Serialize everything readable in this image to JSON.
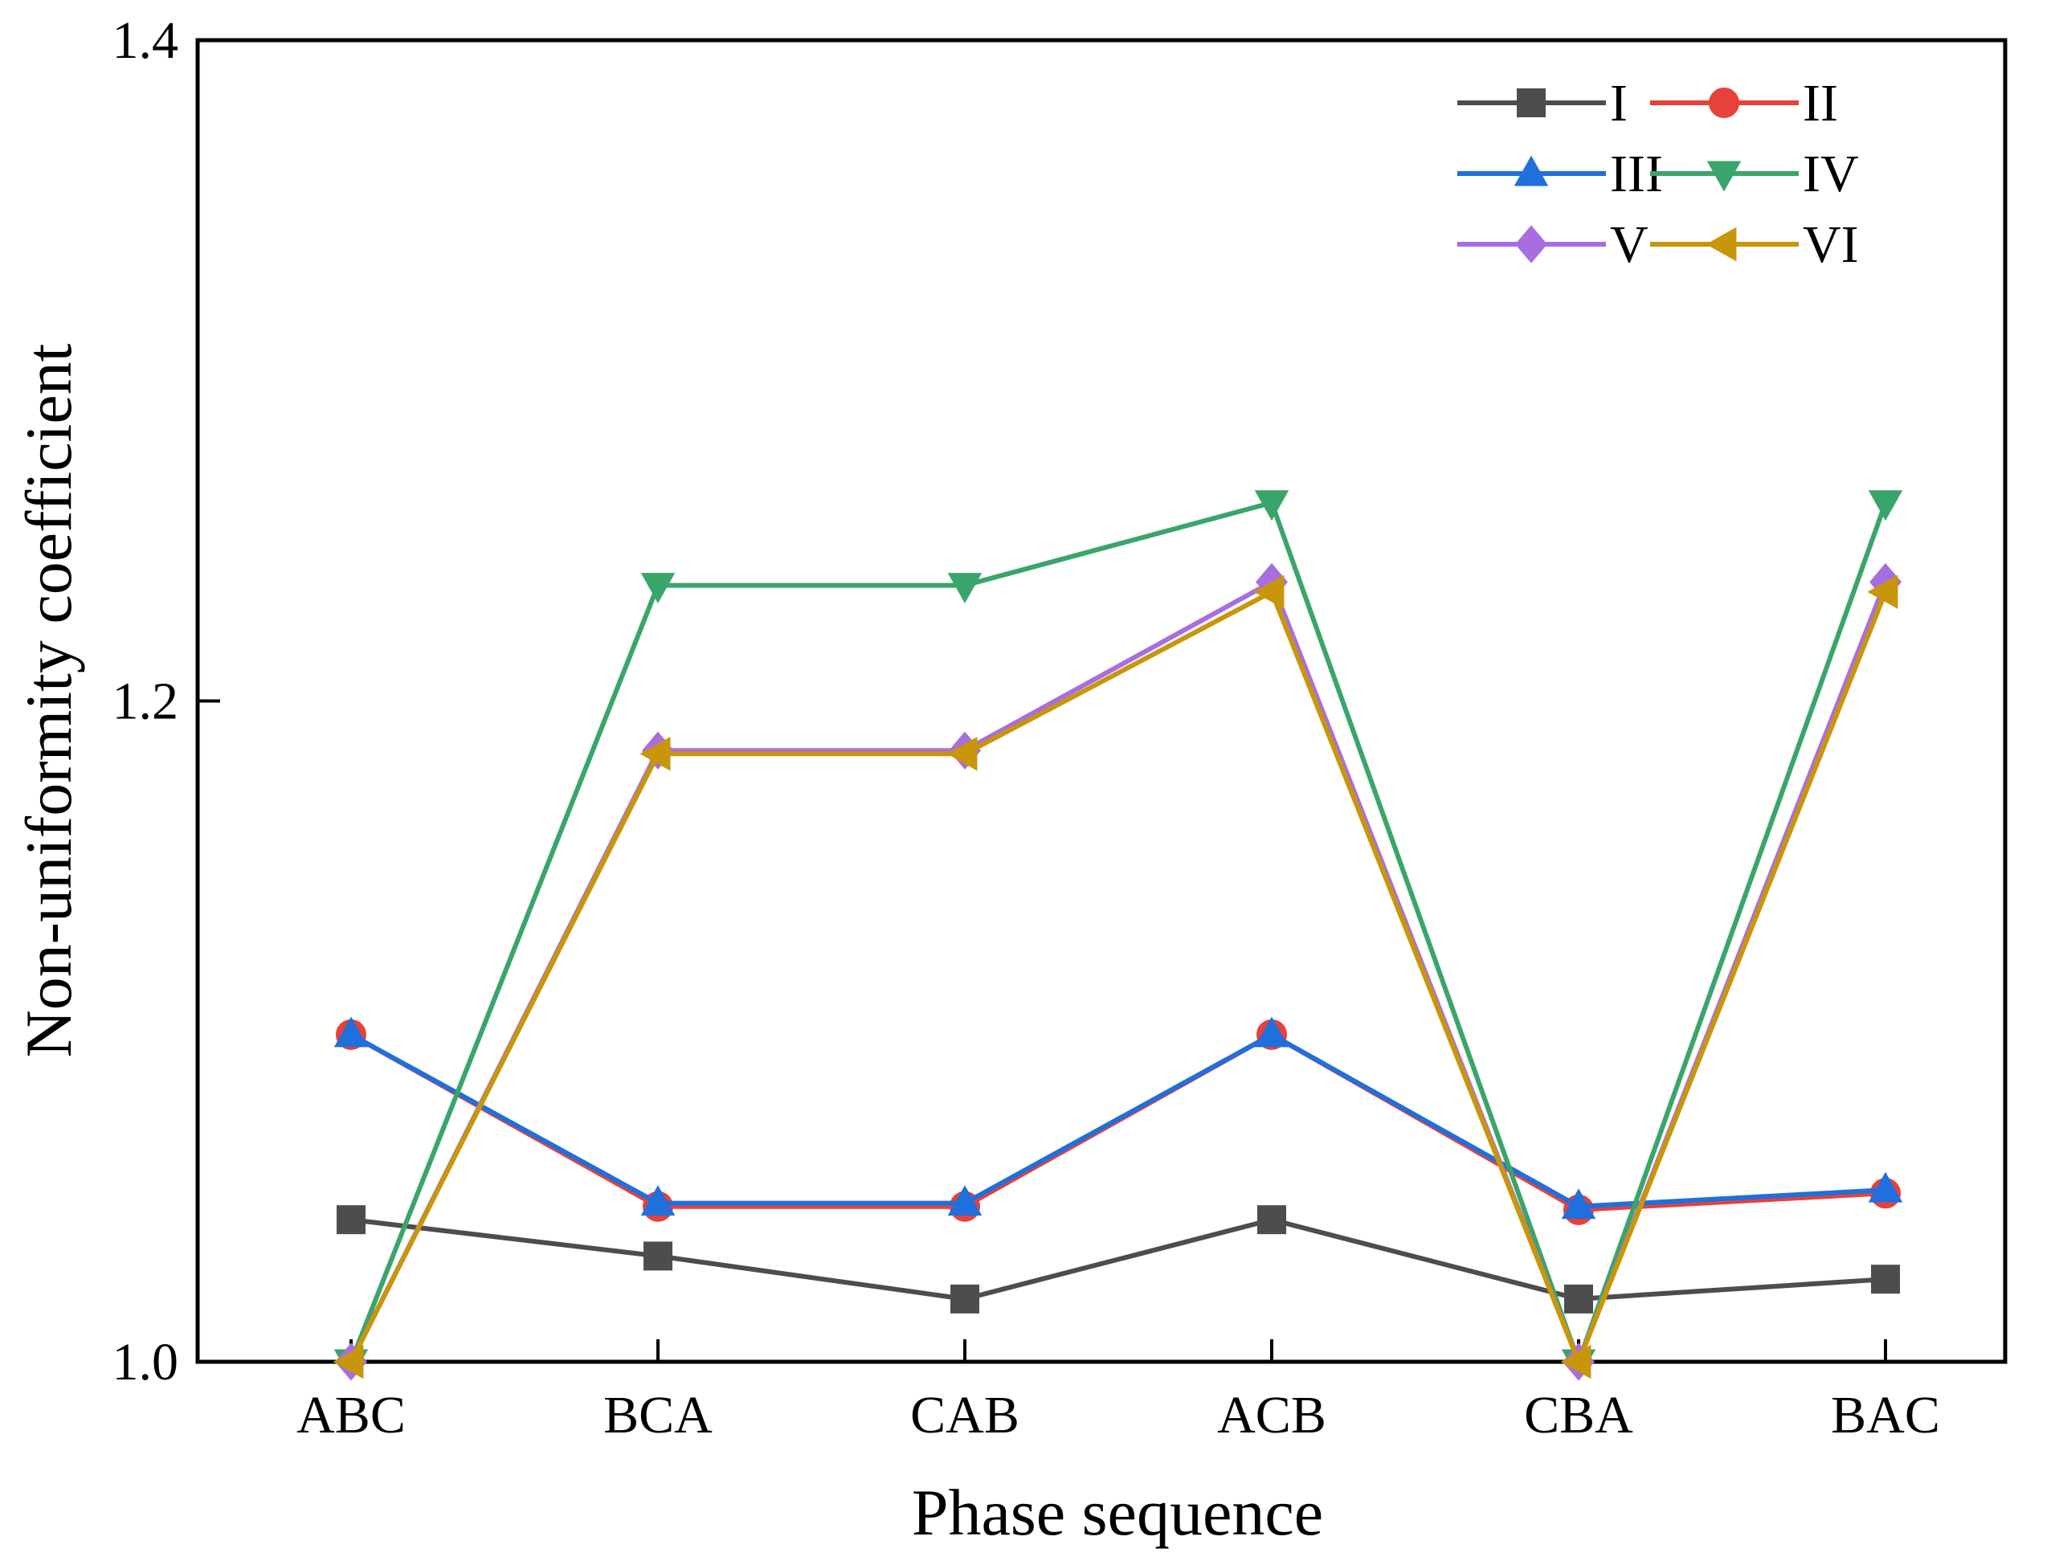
{
  "chart_data": {
    "type": "line",
    "title": "",
    "xlabel": "Phase sequence",
    "ylabel": "Non-uniformity coefficient",
    "categories": [
      "ABC",
      "BCA",
      "CAB",
      "ACB",
      "CBA",
      "BAC"
    ],
    "ylim": [
      1.0,
      1.4
    ],
    "yticks": [
      "1.0",
      "1.2",
      "1.4"
    ],
    "legend": "top-right",
    "series": [
      {
        "name": "I",
        "color": "#4d4d4d",
        "marker": "square",
        "values": [
          1.043,
          1.032,
          1.019,
          1.043,
          1.019,
          1.025
        ]
      },
      {
        "name": "II",
        "color": "#e8403a",
        "marker": "circle",
        "values": [
          1.099,
          1.047,
          1.047,
          1.099,
          1.046,
          1.051
        ]
      },
      {
        "name": "III",
        "color": "#1f6fdc",
        "marker": "triangle-up",
        "values": [
          1.099,
          1.048,
          1.048,
          1.099,
          1.047,
          1.052
        ]
      },
      {
        "name": "IV",
        "color": "#3aa56a",
        "marker": "triangle-down",
        "values": [
          1.0,
          1.235,
          1.235,
          1.26,
          1.0,
          1.26
        ]
      },
      {
        "name": "V",
        "color": "#a86ee0",
        "marker": "diamond",
        "values": [
          1.0,
          1.185,
          1.185,
          1.236,
          1.0,
          1.236
        ]
      },
      {
        "name": "VI",
        "color": "#c8960a",
        "marker": "triangle-left",
        "values": [
          1.0,
          1.184,
          1.184,
          1.233,
          1.0,
          1.233
        ]
      }
    ]
  }
}
